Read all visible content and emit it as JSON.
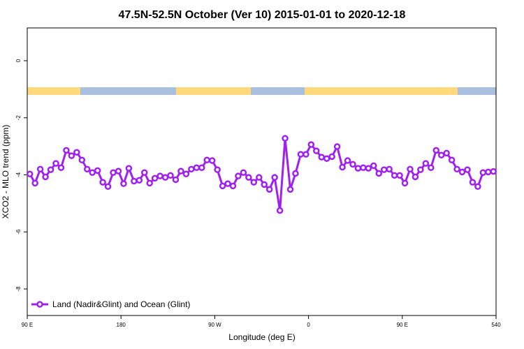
{
  "chart_data": {
    "type": "line",
    "title": "47.5N-52.5N October (Ver 10)   2015-01-01 to 2020-12-18",
    "x_label": "Longitude (deg E)",
    "y_label": "XCO2 - MLO trend (ppm)",
    "x": [
      92.5,
      97.5,
      102.5,
      107.5,
      112.5,
      117.5,
      122.5,
      127.5,
      132.5,
      137.5,
      142.5,
      147.5,
      152.5,
      157.5,
      162.5,
      167.5,
      172.5,
      177.5,
      182.5,
      187.5,
      192.5,
      197.5,
      202.5,
      207.5,
      212.5,
      217.5,
      222.5,
      227.5,
      232.5,
      237.5,
      242.5,
      247.5,
      252.5,
      257.5,
      262.5,
      267.5,
      272.5,
      277.5,
      282.5,
      287.5,
      292.5,
      297.5,
      302.5,
      307.5,
      312.5,
      317.5,
      322.5,
      327.5,
      332.5,
      337.5,
      342.5,
      347.5,
      352.5,
      357.5,
      362.5,
      367.5,
      372.5,
      377.5,
      382.5,
      387.5,
      392.5,
      397.5,
      402.5,
      407.5,
      412.5,
      417.5,
      422.5,
      427.5,
      432.5,
      437.5,
      442.5,
      447.5,
      452.5,
      457.5,
      462.5,
      467.5,
      472.5,
      477.5,
      482.5,
      487.5,
      492.5,
      497.5,
      502.5,
      507.5,
      512.5,
      517.5,
      522.5,
      527.5,
      532.5,
      537.5
    ],
    "series": [
      {
        "name": "Land (Nadir&Glint) and Ocean (Glint)",
        "color": "#a020f0",
        "values": [
          -3.97,
          -4.29,
          -3.8,
          -4.07,
          -3.82,
          -3.6,
          -3.75,
          -3.14,
          -3.33,
          -3.21,
          -3.48,
          -3.8,
          -3.92,
          -3.85,
          -4.26,
          -4.41,
          -3.92,
          -3.87,
          -4.31,
          -3.77,
          -4.22,
          -4.19,
          -3.92,
          -4.29,
          -4.12,
          -4.04,
          -4.09,
          -4.02,
          -4.17,
          -3.87,
          -3.97,
          -3.8,
          -3.75,
          -3.75,
          -3.48,
          -3.5,
          -3.82,
          -4.39,
          -4.31,
          -4.39,
          -4.04,
          -3.92,
          -4.09,
          -4.26,
          -4.09,
          -4.34,
          -4.51,
          -4.09,
          -5.25,
          -2.72,
          -4.51,
          -3.95,
          -3.28,
          -3.28,
          -2.94,
          -3.16,
          -3.38,
          -3.43,
          -3.36,
          -3.01,
          -3.73,
          -3.5,
          -3.63,
          -3.77,
          -3.75,
          -3.77,
          -3.68,
          -3.95,
          -3.82,
          -3.8,
          -4.02,
          -4.02,
          -4.29,
          -3.8,
          -4.07,
          -3.82,
          -3.6,
          -3.75,
          -3.14,
          -3.31,
          -3.24,
          -3.48,
          -3.8,
          -3.9,
          -3.82,
          -4.26,
          -4.41,
          -3.92,
          -3.9,
          -3.88
        ]
      }
    ],
    "xlim": [
      90,
      540
    ],
    "xticks": [
      {
        "value": 90,
        "label": "90 E"
      },
      180,
      {
        "value": 270,
        "label": "90 W"
      },
      {
        "value": 360,
        "label": "0"
      },
      {
        "value": 450,
        "label": "90 E"
      },
      540
    ],
    "ylim": [
      -8.93,
      1.15
    ],
    "yticks": [
      0,
      -2,
      -4,
      -6,
      -8
    ],
    "legend": "bottom-left"
  }
}
